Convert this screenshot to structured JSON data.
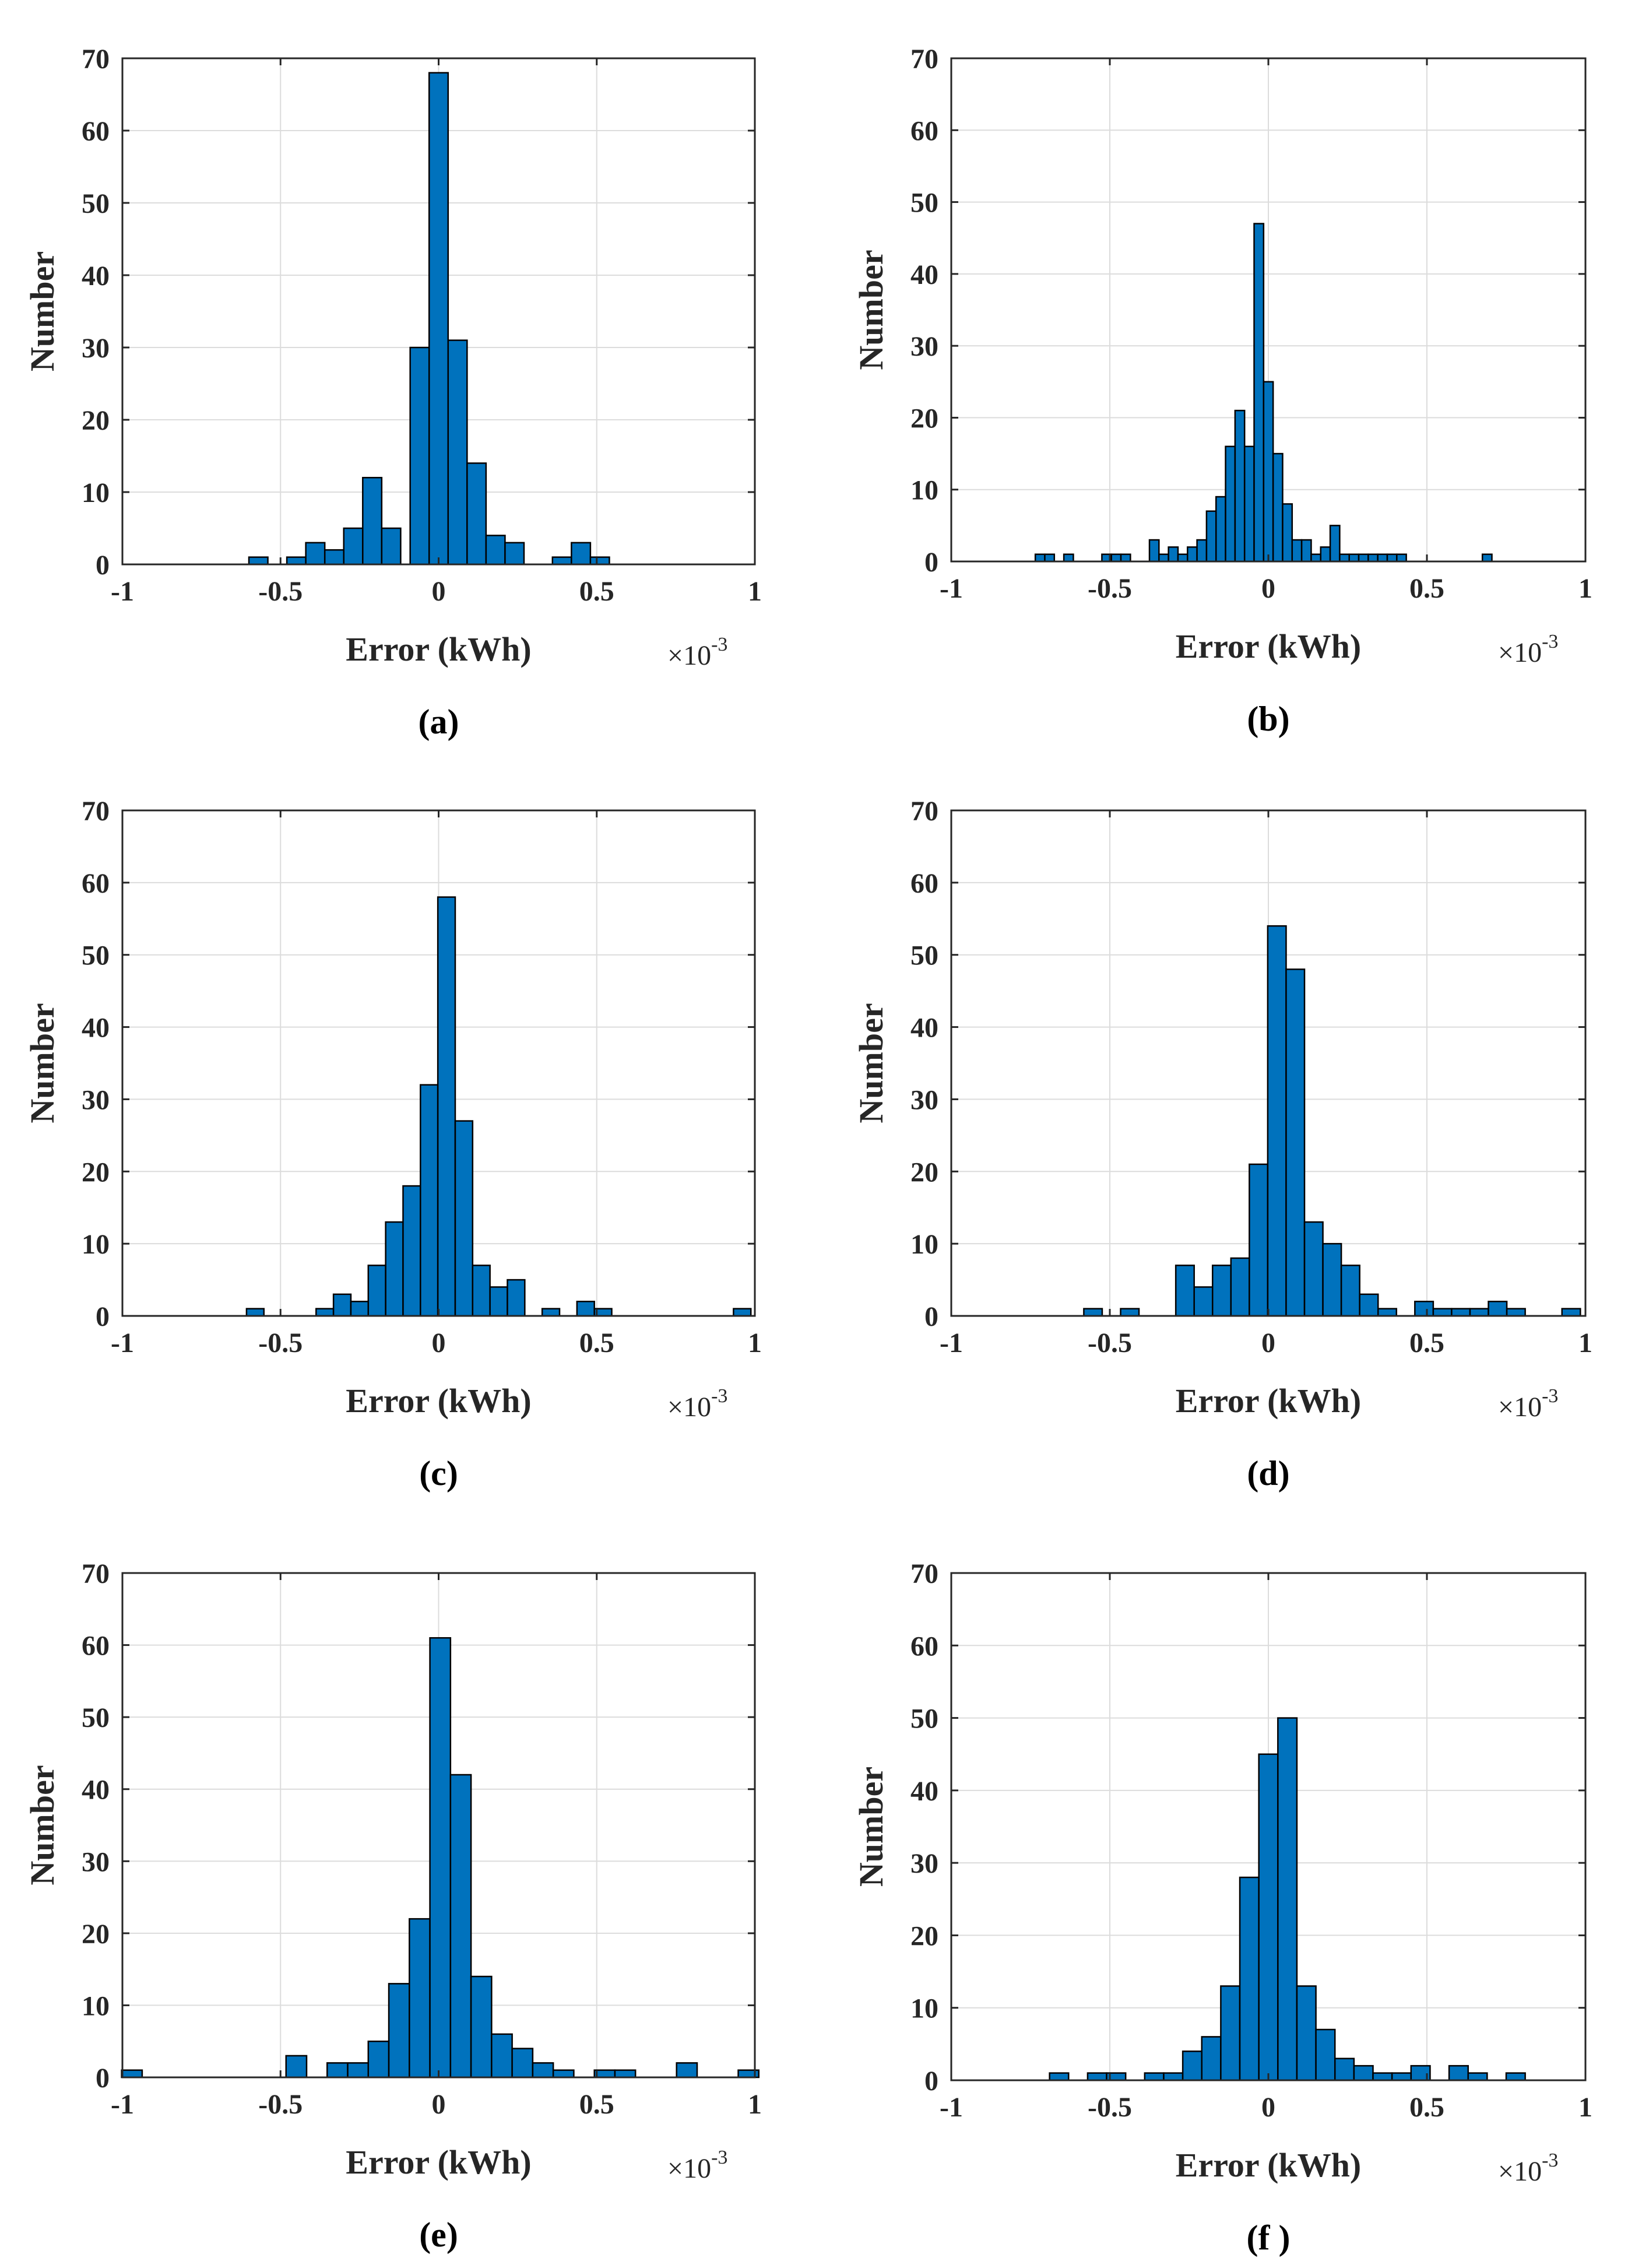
{
  "figure": {
    "colors": {
      "bar_fill": "#0072BD",
      "bar_edge": "#000000",
      "grid": "#dcdcdc",
      "axis": "#262626"
    }
  },
  "chart_data": [
    {
      "panel": "a",
      "caption": "(a)",
      "type": "bar",
      "xlabel": "Error (kWh)",
      "ylabel": "Number",
      "x_multiplier": "×10",
      "x_exponent": "-3",
      "xlim": [
        -1,
        1
      ],
      "ylim": [
        0,
        70
      ],
      "xticks": [
        "-1",
        "-0.5",
        "0",
        "0.5",
        "1"
      ],
      "yticks": [
        "0",
        "10",
        "20",
        "30",
        "40",
        "50",
        "60",
        "70"
      ],
      "bin_width": 0.06,
      "bins": [
        {
          "x": -0.57,
          "count": 1
        },
        {
          "x": -0.45,
          "count": 1
        },
        {
          "x": -0.39,
          "count": 3
        },
        {
          "x": -0.33,
          "count": 2
        },
        {
          "x": -0.27,
          "count": 5
        },
        {
          "x": -0.21,
          "count": 12
        },
        {
          "x": -0.15,
          "count": 5
        },
        {
          "x": -0.06,
          "count": 30
        },
        {
          "x": 0.0,
          "count": 68
        },
        {
          "x": 0.06,
          "count": 31
        },
        {
          "x": 0.12,
          "count": 14
        },
        {
          "x": 0.18,
          "count": 4
        },
        {
          "x": 0.24,
          "count": 3
        },
        {
          "x": 0.39,
          "count": 1
        },
        {
          "x": 0.45,
          "count": 3
        },
        {
          "x": 0.51,
          "count": 1
        }
      ]
    },
    {
      "panel": "b",
      "caption": "(b)",
      "type": "bar",
      "xlabel": "Error (kWh)",
      "ylabel": "Number",
      "x_multiplier": "×10",
      "x_exponent": "-3",
      "xlim": [
        -1,
        1
      ],
      "ylim": [
        0,
        70
      ],
      "xticks": [
        "-1",
        "-0.5",
        "0",
        "0.5",
        "1"
      ],
      "yticks": [
        "0",
        "10",
        "20",
        "30",
        "40",
        "50",
        "60",
        "70"
      ],
      "bin_width": 0.03,
      "bins": [
        {
          "x": -0.72,
          "count": 1
        },
        {
          "x": -0.69,
          "count": 1
        },
        {
          "x": -0.63,
          "count": 1
        },
        {
          "x": -0.51,
          "count": 1
        },
        {
          "x": -0.48,
          "count": 1
        },
        {
          "x": -0.45,
          "count": 1
        },
        {
          "x": -0.36,
          "count": 3
        },
        {
          "x": -0.33,
          "count": 1
        },
        {
          "x": -0.3,
          "count": 2
        },
        {
          "x": -0.27,
          "count": 1
        },
        {
          "x": -0.24,
          "count": 2
        },
        {
          "x": -0.21,
          "count": 3
        },
        {
          "x": -0.18,
          "count": 7
        },
        {
          "x": -0.15,
          "count": 9
        },
        {
          "x": -0.12,
          "count": 16
        },
        {
          "x": -0.09,
          "count": 21
        },
        {
          "x": -0.06,
          "count": 16
        },
        {
          "x": -0.03,
          "count": 47
        },
        {
          "x": 0.0,
          "count": 25
        },
        {
          "x": 0.03,
          "count": 15
        },
        {
          "x": 0.06,
          "count": 8
        },
        {
          "x": 0.09,
          "count": 3
        },
        {
          "x": 0.12,
          "count": 3
        },
        {
          "x": 0.15,
          "count": 1
        },
        {
          "x": 0.18,
          "count": 2
        },
        {
          "x": 0.21,
          "count": 5
        },
        {
          "x": 0.24,
          "count": 1
        },
        {
          "x": 0.27,
          "count": 1
        },
        {
          "x": 0.3,
          "count": 1
        },
        {
          "x": 0.33,
          "count": 1
        },
        {
          "x": 0.36,
          "count": 1
        },
        {
          "x": 0.39,
          "count": 1
        },
        {
          "x": 0.42,
          "count": 1
        },
        {
          "x": 0.69,
          "count": 1
        }
      ]
    },
    {
      "panel": "c",
      "caption": "(c)",
      "type": "bar",
      "xlabel": "Error (kWh)",
      "ylabel": "Number",
      "x_multiplier": "×10",
      "x_exponent": "-3",
      "xlim": [
        -1,
        1
      ],
      "ylim": [
        0,
        70
      ],
      "xticks": [
        "-1",
        "-0.5",
        "0",
        "0.5",
        "1"
      ],
      "yticks": [
        "0",
        "10",
        "20",
        "30",
        "40",
        "50",
        "60",
        "70"
      ],
      "bin_width": 0.055,
      "bins": [
        {
          "x": -0.58,
          "count": 1
        },
        {
          "x": -0.36,
          "count": 1
        },
        {
          "x": -0.305,
          "count": 3
        },
        {
          "x": -0.25,
          "count": 2
        },
        {
          "x": -0.195,
          "count": 7
        },
        {
          "x": -0.14,
          "count": 13
        },
        {
          "x": -0.085,
          "count": 18
        },
        {
          "x": -0.03,
          "count": 32
        },
        {
          "x": 0.025,
          "count": 58
        },
        {
          "x": 0.08,
          "count": 27
        },
        {
          "x": 0.135,
          "count": 7
        },
        {
          "x": 0.19,
          "count": 4
        },
        {
          "x": 0.245,
          "count": 5
        },
        {
          "x": 0.355,
          "count": 1
        },
        {
          "x": 0.465,
          "count": 2
        },
        {
          "x": 0.52,
          "count": 1
        },
        {
          "x": 0.96,
          "count": 1
        }
      ]
    },
    {
      "panel": "d",
      "caption": "(d)",
      "type": "bar",
      "xlabel": "Error (kWh)",
      "ylabel": "Number",
      "x_multiplier": "×10",
      "x_exponent": "-3",
      "xlim": [
        -1,
        1
      ],
      "ylim": [
        0,
        70
      ],
      "xticks": [
        "-1",
        "-0.5",
        "0",
        "0.5",
        "1"
      ],
      "yticks": [
        "0",
        "10",
        "20",
        "30",
        "40",
        "50",
        "60",
        "70"
      ],
      "bin_width": 0.058,
      "bins": [
        {
          "x": -0.553,
          "count": 1
        },
        {
          "x": -0.437,
          "count": 1
        },
        {
          "x": -0.263,
          "count": 7
        },
        {
          "x": -0.205,
          "count": 4
        },
        {
          "x": -0.147,
          "count": 7
        },
        {
          "x": -0.089,
          "count": 8
        },
        {
          "x": -0.031,
          "count": 21
        },
        {
          "x": 0.027,
          "count": 54
        },
        {
          "x": 0.085,
          "count": 48
        },
        {
          "x": 0.143,
          "count": 13
        },
        {
          "x": 0.201,
          "count": 10
        },
        {
          "x": 0.259,
          "count": 7
        },
        {
          "x": 0.317,
          "count": 3
        },
        {
          "x": 0.375,
          "count": 1
        },
        {
          "x": 0.491,
          "count": 2
        },
        {
          "x": 0.549,
          "count": 1
        },
        {
          "x": 0.607,
          "count": 1
        },
        {
          "x": 0.665,
          "count": 1
        },
        {
          "x": 0.723,
          "count": 2
        },
        {
          "x": 0.781,
          "count": 1
        },
        {
          "x": 0.955,
          "count": 1
        }
      ]
    },
    {
      "panel": "e",
      "caption": "(e)",
      "type": "bar",
      "xlabel": "Error (kWh)",
      "ylabel": "Number",
      "x_multiplier": "×10",
      "x_exponent": "-3",
      "xlim": [
        -1,
        1
      ],
      "ylim": [
        0,
        70
      ],
      "xticks": [
        "-1",
        "-0.5",
        "0",
        "0.5",
        "1"
      ],
      "yticks": [
        "0",
        "10",
        "20",
        "30",
        "40",
        "50",
        "60",
        "70"
      ],
      "bin_width": 0.065,
      "bins": [
        {
          "x": -0.97,
          "count": 1
        },
        {
          "x": -0.45,
          "count": 3
        },
        {
          "x": -0.32,
          "count": 2
        },
        {
          "x": -0.255,
          "count": 2
        },
        {
          "x": -0.19,
          "count": 5
        },
        {
          "x": -0.125,
          "count": 13
        },
        {
          "x": -0.06,
          "count": 22
        },
        {
          "x": 0.005,
          "count": 61
        },
        {
          "x": 0.07,
          "count": 42
        },
        {
          "x": 0.135,
          "count": 14
        },
        {
          "x": 0.2,
          "count": 6
        },
        {
          "x": 0.265,
          "count": 4
        },
        {
          "x": 0.33,
          "count": 2
        },
        {
          "x": 0.395,
          "count": 1
        },
        {
          "x": 0.525,
          "count": 1
        },
        {
          "x": 0.59,
          "count": 1
        },
        {
          "x": 0.785,
          "count": 2
        },
        {
          "x": 0.98,
          "count": 1
        }
      ]
    },
    {
      "panel": "f",
      "caption": "(f )",
      "type": "bar",
      "xlabel": "Error (kWh)",
      "ylabel": "Number",
      "x_multiplier": "×10",
      "x_exponent": "-3",
      "xlim": [
        -1,
        1
      ],
      "ylim": [
        0,
        70
      ],
      "xticks": [
        "-1",
        "-0.5",
        "0",
        "0.5",
        "1"
      ],
      "yticks": [
        "0",
        "10",
        "20",
        "30",
        "40",
        "50",
        "60",
        "70"
      ],
      "bin_width": 0.06,
      "bins": [
        {
          "x": -0.66,
          "count": 1
        },
        {
          "x": -0.54,
          "count": 1
        },
        {
          "x": -0.48,
          "count": 1
        },
        {
          "x": -0.36,
          "count": 1
        },
        {
          "x": -0.3,
          "count": 1
        },
        {
          "x": -0.24,
          "count": 4
        },
        {
          "x": -0.18,
          "count": 6
        },
        {
          "x": -0.12,
          "count": 13
        },
        {
          "x": -0.06,
          "count": 28
        },
        {
          "x": 0.0,
          "count": 45
        },
        {
          "x": 0.06,
          "count": 50
        },
        {
          "x": 0.12,
          "count": 13
        },
        {
          "x": 0.18,
          "count": 7
        },
        {
          "x": 0.24,
          "count": 3
        },
        {
          "x": 0.3,
          "count": 2
        },
        {
          "x": 0.36,
          "count": 1
        },
        {
          "x": 0.42,
          "count": 1
        },
        {
          "x": 0.48,
          "count": 2
        },
        {
          "x": 0.6,
          "count": 2
        },
        {
          "x": 0.66,
          "count": 1
        },
        {
          "x": 0.78,
          "count": 1
        }
      ]
    }
  ]
}
